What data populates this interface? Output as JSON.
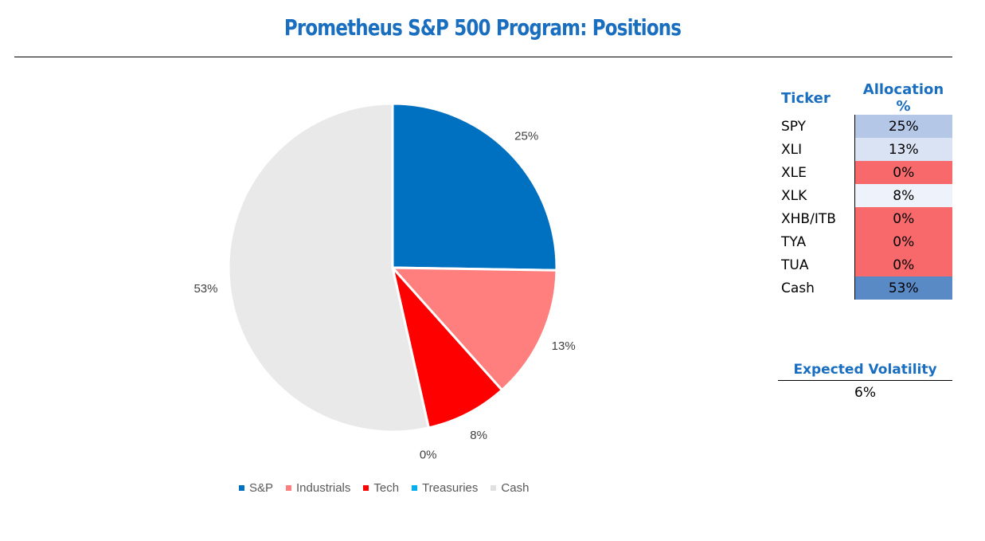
{
  "title": "Prometheus S&P 500 Program: Positions",
  "colors": {
    "title": "#1a6ec0",
    "sp": "#0070c0",
    "industrials": "#ff7f7f",
    "tech": "#ff0000",
    "treasuries": "#00b0f0",
    "cash": "#e9e9e9"
  },
  "chart_data": {
    "type": "pie",
    "title": "",
    "categories": [
      "S&P",
      "Industrials",
      "Tech",
      "Treasuries",
      "Cash"
    ],
    "values": [
      25,
      13,
      8,
      0,
      53
    ],
    "labels": [
      "25%",
      "13%",
      "8%",
      "0%",
      "53%"
    ],
    "colors": [
      "#0070c0",
      "#ff7f7f",
      "#ff0000",
      "#00b0f0",
      "#e9e9e9"
    ],
    "legend_position": "bottom"
  },
  "allocation_table": {
    "header_ticker": "Ticker",
    "header_alloc": "Allocation %",
    "rows": [
      {
        "ticker": "SPY",
        "alloc": "25%",
        "bg": "#b4c7e7"
      },
      {
        "ticker": "XLI",
        "alloc": "13%",
        "bg": "#dae3f3"
      },
      {
        "ticker": "XLE",
        "alloc": "0%",
        "bg": "#f8696b"
      },
      {
        "ticker": "XLK",
        "alloc": "8%",
        "bg": "#eef3fb"
      },
      {
        "ticker": "XHB/ITB",
        "alloc": "0%",
        "bg": "#f8696b"
      },
      {
        "ticker": "TYA",
        "alloc": "0%",
        "bg": "#f8696b"
      },
      {
        "ticker": "TUA",
        "alloc": "0%",
        "bg": "#f8696b"
      },
      {
        "ticker": "Cash",
        "alloc": "53%",
        "bg": "#5a8ac6"
      }
    ]
  },
  "volatility": {
    "label": "Expected Volatility",
    "value": "6%"
  }
}
